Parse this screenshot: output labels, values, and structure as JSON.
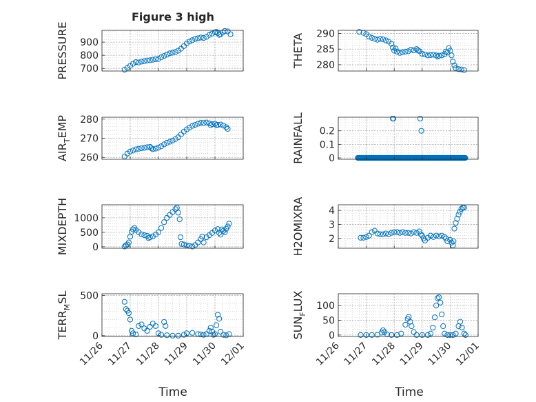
{
  "figure": {
    "title": "Figure 3 high",
    "xlabel_left": "Time",
    "xlabel_right": "Time",
    "x_ticks": [
      "11/26",
      "11/27",
      "11/28",
      "11/29",
      "11/30",
      "12/01"
    ],
    "marker_color": "#0072BD"
  },
  "chart_data": [
    {
      "type": "scatter",
      "id": "pressure",
      "ylabel": "PRESSURE",
      "ylim": [
        680,
        990
      ],
      "yticks": [
        700,
        800,
        900
      ],
      "ytick_labels": [
        "700",
        "800",
        "900"
      ],
      "points": [
        [
          26.8,
          690
        ],
        [
          26.9,
          705
        ],
        [
          27.0,
          720
        ],
        [
          27.1,
          735
        ],
        [
          27.2,
          748
        ],
        [
          27.3,
          745
        ],
        [
          27.4,
          752
        ],
        [
          27.5,
          755
        ],
        [
          27.6,
          760
        ],
        [
          27.7,
          762
        ],
        [
          27.8,
          766
        ],
        [
          27.9,
          770
        ],
        [
          28.0,
          772
        ],
        [
          28.1,
          785
        ],
        [
          28.2,
          795
        ],
        [
          28.3,
          805
        ],
        [
          28.4,
          815
        ],
        [
          28.5,
          820
        ],
        [
          28.6,
          825
        ],
        [
          28.7,
          835
        ],
        [
          28.8,
          850
        ],
        [
          28.9,
          870
        ],
        [
          29.0,
          890
        ],
        [
          29.1,
          905
        ],
        [
          29.2,
          915
        ],
        [
          29.3,
          925
        ],
        [
          29.4,
          930
        ],
        [
          29.5,
          935
        ],
        [
          29.6,
          932
        ],
        [
          29.7,
          940
        ],
        [
          29.8,
          955
        ],
        [
          29.9,
          965
        ],
        [
          30.0,
          975
        ],
        [
          30.05,
          978
        ],
        [
          30.1,
          970
        ],
        [
          30.15,
          955
        ],
        [
          30.2,
          960
        ],
        [
          30.28,
          975
        ],
        [
          30.35,
          985
        ],
        [
          30.45,
          982
        ],
        [
          30.55,
          960
        ]
      ]
    },
    {
      "type": "scatter",
      "id": "theta",
      "ylabel": "THETA",
      "ylim": [
        278,
        291
      ],
      "yticks": [
        280,
        285,
        290
      ],
      "ytick_labels": [
        "280",
        "285",
        "290"
      ],
      "points": [
        [
          26.75,
          290.5
        ],
        [
          26.9,
          290.2
        ],
        [
          27.0,
          289.8
        ],
        [
          27.1,
          289.0
        ],
        [
          27.2,
          288.6
        ],
        [
          27.3,
          288.3
        ],
        [
          27.4,
          288.0
        ],
        [
          27.5,
          288.3
        ],
        [
          27.6,
          288.1
        ],
        [
          27.7,
          287.8
        ],
        [
          27.8,
          287.4
        ],
        [
          27.9,
          286.7
        ],
        [
          27.95,
          285.5
        ],
        [
          28.0,
          284.5
        ],
        [
          28.05,
          285.2
        ],
        [
          28.1,
          284.2
        ],
        [
          28.2,
          283.8
        ],
        [
          28.3,
          284.0
        ],
        [
          28.4,
          284.2
        ],
        [
          28.5,
          284.3
        ],
        [
          28.6,
          284.8
        ],
        [
          28.7,
          284.6
        ],
        [
          28.8,
          285.0
        ],
        [
          28.85,
          284.6
        ],
        [
          28.9,
          284.3
        ],
        [
          29.0,
          283.5
        ],
        [
          29.1,
          283.3
        ],
        [
          29.2,
          283.0
        ],
        [
          29.3,
          283.1
        ],
        [
          29.4,
          283.2
        ],
        [
          29.5,
          283.0
        ],
        [
          29.55,
          282.6
        ],
        [
          29.6,
          282.9
        ],
        [
          29.7,
          283.0
        ],
        [
          29.8,
          283.4
        ],
        [
          29.85,
          284.2
        ],
        [
          29.9,
          283.9
        ],
        [
          29.95,
          285.3
        ],
        [
          30.0,
          284.5
        ],
        [
          30.05,
          283.0
        ],
        [
          30.1,
          281.0
        ],
        [
          30.15,
          279.8
        ],
        [
          30.2,
          278.9
        ],
        [
          30.3,
          278.6
        ],
        [
          30.4,
          278.5
        ],
        [
          30.5,
          278.3
        ]
      ]
    },
    {
      "type": "scatter",
      "id": "air-temp",
      "ylabel_main": "AIR",
      "ylabel_sub": "T",
      "ylabel_rest": "EMP",
      "ylim": [
        259,
        281
      ],
      "yticks": [
        260,
        270,
        280
      ],
      "ytick_labels": [
        "260",
        "270",
        "280"
      ],
      "points": [
        [
          26.8,
          260.5
        ],
        [
          26.9,
          262.0
        ],
        [
          27.0,
          263.0
        ],
        [
          27.1,
          263.6
        ],
        [
          27.2,
          264.2
        ],
        [
          27.3,
          264.5
        ],
        [
          27.4,
          264.8
        ],
        [
          27.5,
          265.0
        ],
        [
          27.6,
          265.3
        ],
        [
          27.7,
          265.5
        ],
        [
          27.75,
          264.8
        ],
        [
          27.8,
          264.3
        ],
        [
          27.9,
          264.6
        ],
        [
          28.0,
          265.2
        ],
        [
          28.1,
          265.8
        ],
        [
          28.2,
          266.8
        ],
        [
          28.3,
          267.6
        ],
        [
          28.4,
          268.2
        ],
        [
          28.5,
          268.8
        ],
        [
          28.6,
          269.6
        ],
        [
          28.7,
          270.5
        ],
        [
          28.8,
          272.0
        ],
        [
          28.9,
          273.5
        ],
        [
          29.0,
          274.6
        ],
        [
          29.1,
          275.6
        ],
        [
          29.2,
          276.5
        ],
        [
          29.3,
          277.0
        ],
        [
          29.4,
          277.6
        ],
        [
          29.5,
          278.1
        ],
        [
          29.6,
          278.0
        ],
        [
          29.7,
          278.2
        ],
        [
          29.8,
          277.8
        ],
        [
          29.85,
          276.8
        ],
        [
          29.9,
          277.4
        ],
        [
          30.0,
          277.6
        ],
        [
          30.05,
          276.9
        ],
        [
          30.1,
          277.0
        ],
        [
          30.2,
          277.2
        ],
        [
          30.3,
          276.6
        ],
        [
          30.4,
          275.8
        ],
        [
          30.45,
          274.9
        ]
      ]
    },
    {
      "type": "scatter",
      "id": "rainfall",
      "ylabel": "RAINFALL",
      "ylim": [
        -0.01,
        0.3
      ],
      "yticks": [
        0,
        0.1,
        0.2
      ],
      "ytick_labels": [
        "0",
        "0.1",
        "0.2"
      ],
      "zero_run": [
        26.7,
        30.55
      ],
      "points": [
        [
          27.95,
          0.29
        ],
        [
          27.97,
          0.29
        ],
        [
          28.93,
          0.29
        ],
        [
          28.97,
          0.2
        ]
      ]
    },
    {
      "type": "scatter",
      "id": "mixdepth",
      "ylabel": "MIXDEPTH",
      "ylim": [
        -50,
        1450
      ],
      "yticks": [
        0,
        500,
        1000
      ],
      "ytick_labels": [
        "0",
        "500",
        "1000"
      ],
      "points": [
        [
          26.8,
          10
        ],
        [
          26.85,
          50
        ],
        [
          26.9,
          80
        ],
        [
          26.95,
          150
        ],
        [
          27.0,
          350
        ],
        [
          27.05,
          520
        ],
        [
          27.1,
          600
        ],
        [
          27.15,
          650
        ],
        [
          27.2,
          580
        ],
        [
          27.3,
          500
        ],
        [
          27.4,
          430
        ],
        [
          27.5,
          400
        ],
        [
          27.6,
          380
        ],
        [
          27.65,
          300
        ],
        [
          27.7,
          330
        ],
        [
          27.8,
          360
        ],
        [
          27.9,
          420
        ],
        [
          28.0,
          500
        ],
        [
          28.1,
          650
        ],
        [
          28.2,
          850
        ],
        [
          28.3,
          1000
        ],
        [
          28.4,
          1100
        ],
        [
          28.5,
          1200
        ],
        [
          28.6,
          1300
        ],
        [
          28.65,
          1350
        ],
        [
          28.7,
          1180
        ],
        [
          28.75,
          950
        ],
        [
          28.78,
          330
        ],
        [
          28.82,
          100
        ],
        [
          28.9,
          80
        ],
        [
          29.0,
          50
        ],
        [
          29.1,
          30
        ],
        [
          29.2,
          10
        ],
        [
          29.3,
          60
        ],
        [
          29.4,
          150
        ],
        [
          29.5,
          260
        ],
        [
          29.55,
          350
        ],
        [
          29.6,
          150
        ],
        [
          29.7,
          330
        ],
        [
          29.8,
          400
        ],
        [
          29.9,
          480
        ],
        [
          30.0,
          560
        ],
        [
          30.1,
          610
        ],
        [
          30.15,
          480
        ],
        [
          30.2,
          420
        ],
        [
          30.25,
          600
        ],
        [
          30.3,
          550
        ],
        [
          30.35,
          500
        ],
        [
          30.4,
          620
        ],
        [
          30.45,
          700
        ],
        [
          30.5,
          800
        ]
      ]
    },
    {
      "type": "scatter",
      "id": "h2omixra",
      "ylabel": "H2OMIXRA",
      "ylim": [
        1.3,
        4.4
      ],
      "yticks": [
        2,
        3,
        4
      ],
      "ytick_labels": [
        "2",
        "3",
        "4"
      ],
      "points": [
        [
          26.8,
          2.05
        ],
        [
          26.9,
          2.05
        ],
        [
          27.0,
          2.1
        ],
        [
          27.1,
          2.2
        ],
        [
          27.2,
          2.45
        ],
        [
          27.3,
          2.55
        ],
        [
          27.4,
          2.35
        ],
        [
          27.5,
          2.3
        ],
        [
          27.6,
          2.3
        ],
        [
          27.7,
          2.35
        ],
        [
          27.8,
          2.3
        ],
        [
          27.9,
          2.4
        ],
        [
          28.0,
          2.45
        ],
        [
          28.1,
          2.45
        ],
        [
          28.2,
          2.4
        ],
        [
          28.3,
          2.45
        ],
        [
          28.4,
          2.4
        ],
        [
          28.5,
          2.4
        ],
        [
          28.6,
          2.35
        ],
        [
          28.7,
          2.45
        ],
        [
          28.8,
          2.4
        ],
        [
          28.9,
          2.5
        ],
        [
          28.95,
          2.3
        ],
        [
          29.0,
          2.2
        ],
        [
          29.05,
          2.0
        ],
        [
          29.1,
          1.85
        ],
        [
          29.2,
          2.05
        ],
        [
          29.3,
          2.2
        ],
        [
          29.4,
          2.1
        ],
        [
          29.5,
          2.2
        ],
        [
          29.6,
          2.15
        ],
        [
          29.7,
          2.2
        ],
        [
          29.8,
          2.1
        ],
        [
          29.85,
          2.0
        ],
        [
          29.9,
          1.8
        ],
        [
          30.0,
          1.9
        ],
        [
          30.05,
          1.7
        ],
        [
          30.1,
          1.5
        ],
        [
          30.12,
          1.8
        ],
        [
          30.15,
          2.7
        ],
        [
          30.2,
          3.1
        ],
        [
          30.25,
          3.4
        ],
        [
          30.3,
          3.7
        ],
        [
          30.35,
          3.9
        ],
        [
          30.4,
          4.1
        ],
        [
          30.45,
          4.2
        ],
        [
          30.5,
          4.2
        ]
      ]
    },
    {
      "type": "scatter",
      "id": "terr-msl",
      "ylabel_main": "TERR",
      "ylabel_sub": "M",
      "ylabel_rest": "SL",
      "ylim": [
        -10,
        520
      ],
      "yticks": [
        0,
        500
      ],
      "ytick_labels": [
        "0",
        "500"
      ],
      "points": [
        [
          26.8,
          420
        ],
        [
          26.85,
          330
        ],
        [
          26.9,
          310
        ],
        [
          26.95,
          280
        ],
        [
          27.0,
          200
        ],
        [
          27.05,
          60
        ],
        [
          27.1,
          30
        ],
        [
          27.2,
          15
        ],
        [
          27.3,
          120
        ],
        [
          27.4,
          140
        ],
        [
          27.5,
          90
        ],
        [
          27.6,
          60
        ],
        [
          27.7,
          110
        ],
        [
          27.8,
          150
        ],
        [
          27.9,
          120
        ],
        [
          28.0,
          30
        ],
        [
          28.1,
          10
        ],
        [
          28.2,
          170
        ],
        [
          28.25,
          120
        ],
        [
          28.3,
          5
        ],
        [
          28.5,
          0
        ],
        [
          28.7,
          0
        ],
        [
          28.9,
          10
        ],
        [
          29.0,
          30
        ],
        [
          29.2,
          35
        ],
        [
          29.4,
          20
        ],
        [
          29.5,
          15
        ],
        [
          29.6,
          10
        ],
        [
          29.7,
          20
        ],
        [
          29.8,
          60
        ],
        [
          29.85,
          100
        ],
        [
          29.9,
          50
        ],
        [
          29.95,
          10
        ],
        [
          30.0,
          20
        ],
        [
          30.05,
          130
        ],
        [
          30.1,
          260
        ],
        [
          30.15,
          210
        ],
        [
          30.2,
          50
        ],
        [
          30.3,
          10
        ],
        [
          30.4,
          5
        ],
        [
          30.5,
          20
        ]
      ]
    },
    {
      "type": "scatter",
      "id": "sun-flux",
      "ylabel_main": "SUN",
      "ylabel_sub": "F",
      "ylabel_rest": "LUX",
      "ylim": [
        -5,
        140
      ],
      "yticks": [
        0,
        50,
        100
      ],
      "ytick_labels": [
        "0",
        "50",
        "100"
      ],
      "points": [
        [
          26.8,
          0
        ],
        [
          27.0,
          0
        ],
        [
          27.2,
          0
        ],
        [
          27.4,
          1
        ],
        [
          27.55,
          8
        ],
        [
          27.6,
          16
        ],
        [
          27.65,
          10
        ],
        [
          27.75,
          2
        ],
        [
          27.9,
          0
        ],
        [
          28.1,
          0
        ],
        [
          28.25,
          5
        ],
        [
          28.4,
          35
        ],
        [
          28.48,
          55
        ],
        [
          28.52,
          62
        ],
        [
          28.57,
          45
        ],
        [
          28.62,
          30
        ],
        [
          28.7,
          10
        ],
        [
          28.8,
          0
        ],
        [
          29.0,
          0
        ],
        [
          29.2,
          0
        ],
        [
          29.3,
          5
        ],
        [
          29.38,
          25
        ],
        [
          29.45,
          60
        ],
        [
          29.5,
          100
        ],
        [
          29.55,
          125
        ],
        [
          29.6,
          128
        ],
        [
          29.65,
          110
        ],
        [
          29.7,
          70
        ],
        [
          29.75,
          30
        ],
        [
          29.8,
          5
        ],
        [
          29.9,
          0
        ],
        [
          30.0,
          0
        ],
        [
          30.1,
          0
        ],
        [
          30.2,
          5
        ],
        [
          30.3,
          30
        ],
        [
          30.36,
          45
        ],
        [
          30.42,
          25
        ],
        [
          30.5,
          5
        ],
        [
          30.55,
          0
        ]
      ]
    }
  ]
}
